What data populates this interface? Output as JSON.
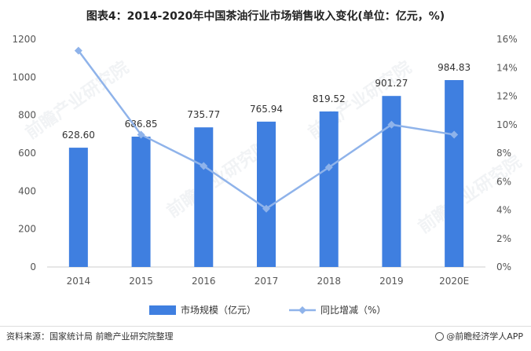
{
  "chart_data": {
    "type": "bar",
    "title": "图表4：2014-2020年中国茶油行业市场销售收入变化(单位：亿元，%)",
    "categories": [
      "2014",
      "2015",
      "2016",
      "2017",
      "2018",
      "2019",
      "2020E"
    ],
    "series": [
      {
        "name": "市场规模（亿元）",
        "type": "bar",
        "axis": "left",
        "color": "#3f7fe0",
        "values": [
          628.6,
          686.85,
          735.77,
          765.94,
          819.52,
          901.27,
          984.83
        ],
        "labels": [
          "628.60",
          "686.85",
          "735.77",
          "765.94",
          "819.52",
          "901.27",
          "984.83"
        ]
      },
      {
        "name": "同比增减（%）",
        "type": "line",
        "axis": "right",
        "color": "#8fb3ea",
        "values": [
          15.2,
          9.3,
          7.1,
          4.1,
          7.0,
          10.0,
          9.3
        ]
      }
    ],
    "y_left": {
      "min": 0,
      "max": 1200,
      "ticks": [
        "0",
        "200",
        "400",
        "600",
        "800",
        "1000",
        "1200"
      ]
    },
    "y_right": {
      "min": 0,
      "max": 16,
      "ticks": [
        "0%",
        "2%",
        "4%",
        "6%",
        "8%",
        "10%",
        "12%",
        "14%",
        "16%"
      ]
    },
    "legend_position": "bottom",
    "grid": false
  },
  "footer": {
    "source": "资料来源：国家统计局 前瞻产业研究院整理",
    "brand": "@前瞻经济学人APP"
  },
  "watermark_text": "前瞻产业研究院"
}
